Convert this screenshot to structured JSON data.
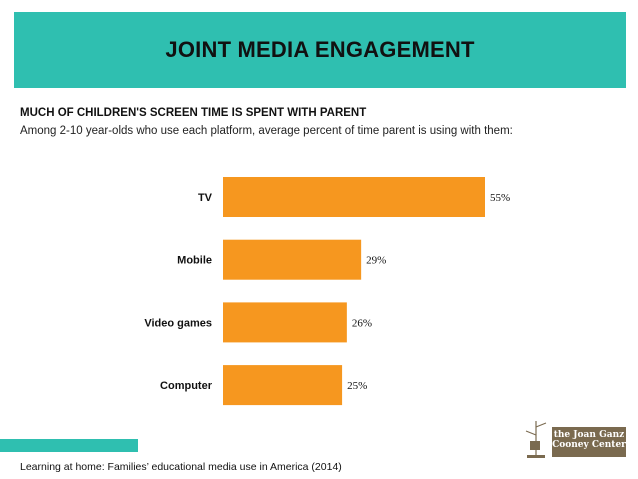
{
  "header": {
    "title": "JOINT MEDIA ENGAGEMENT"
  },
  "subtitle": "MUCH OF CHILDREN'S SCREEN TIME IS SPENT WITH PARENT",
  "description": "Among 2-10 year-olds who use each platform, average percent of time parent is using with them:",
  "source": "Learning at home: Families’ educational media use in America (2014)",
  "logo": {
    "text_line1": "the Joan Ganz",
    "text_line2": "Cooney Center"
  },
  "colors": {
    "accent": "#2fbfb0",
    "bar": "#f6971f"
  },
  "chart_data": {
    "type": "bar",
    "orientation": "horizontal",
    "title": "MUCH OF CHILDREN'S SCREEN TIME IS SPENT WITH PARENT",
    "xlabel": "",
    "ylabel": "",
    "categories": [
      "TV",
      "Mobile",
      "Video games",
      "Computer"
    ],
    "values": [
      55,
      29,
      26,
      25
    ],
    "value_labels": [
      "55%",
      "29%",
      "26%",
      "25%"
    ],
    "xlim": [
      0,
      60
    ],
    "grid": false,
    "legend": "none"
  }
}
